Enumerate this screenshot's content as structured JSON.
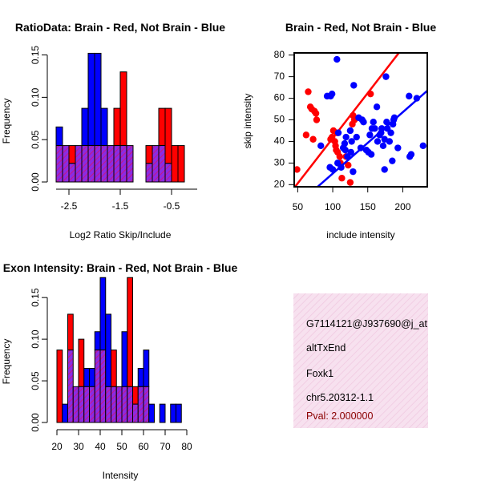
{
  "colors": {
    "red": "#ff0000",
    "blue": "#0000ff",
    "overlap_fill": "#8b2be2",
    "overlap_hatch": "#c71585",
    "line_red": "#ff0000",
    "line_blue": "#0000ff",
    "panel_fill": "#f7e1ef",
    "pval": "#8b0000"
  },
  "chart_data": [
    {
      "id": "ratio",
      "type": "bar",
      "title": "RatioData: Brain - Red, Not Brain - Blue",
      "xlabel": "Log2 Ratio Skip/Include",
      "ylabel": "Frequency",
      "xlim": [
        -2.75,
        0.0
      ],
      "ylim": [
        0,
        0.16
      ],
      "xticks": [
        -2.5,
        -1.5,
        -0.5
      ],
      "xtick_labels": [
        "-2.5",
        "-1.5",
        "-0.5"
      ],
      "yticks": [
        0.0,
        0.05,
        0.1,
        0.15
      ],
      "ytick_labels": [
        "0.00",
        "0.05",
        "0.10",
        "0.15"
      ],
      "bin_edges": [
        -2.75,
        -2.625,
        -2.5,
        -2.375,
        -2.25,
        -2.125,
        -2.0,
        -1.875,
        -1.75,
        -1.625,
        -1.5,
        -1.375,
        -1.25,
        -1.125,
        -1.0,
        -0.875,
        -0.75,
        -0.625,
        -0.5,
        -0.375,
        -0.25
      ],
      "series": [
        {
          "name": "Brain",
          "color": "red",
          "values": [
            0.043,
            0.043,
            0.043,
            0.043,
            0.043,
            0.043,
            0.043,
            0.043,
            0.043,
            0.087,
            0.13,
            0.043,
            0,
            0,
            0.043,
            0.043,
            0.087,
            0.087,
            0.043,
            0.043
          ]
        },
        {
          "name": "Not Brain",
          "color": "blue",
          "values": [
            0.065,
            0.043,
            0.022,
            0.043,
            0.087,
            0.152,
            0.152,
            0.087,
            0.043,
            0.043,
            0.043,
            0.043,
            0,
            0,
            0.022,
            0.043,
            0.043,
            0.022,
            0,
            0
          ]
        }
      ]
    },
    {
      "id": "scatter",
      "type": "scatter",
      "title": "Brain - Red, Not Brain - Blue",
      "xlabel": "include intensity",
      "ylabel": "skip intensity",
      "xlim": [
        45,
        235
      ],
      "ylim": [
        19,
        81
      ],
      "xticks": [
        50,
        100,
        150,
        200
      ],
      "xtick_labels": [
        "50",
        "100",
        "150",
        "200"
      ],
      "yticks": [
        20,
        30,
        40,
        50,
        60,
        70,
        80
      ],
      "ytick_labels": [
        "20",
        "30",
        "40",
        "50",
        "60",
        "70",
        "80"
      ],
      "series": [
        {
          "name": "Brain",
          "color": "red",
          "points": [
            [
              49,
              27
            ],
            [
              62,
              43
            ],
            [
              65,
              63
            ],
            [
              68,
              56
            ],
            [
              70,
              55
            ],
            [
              72,
              41
            ],
            [
              74,
              54
            ],
            [
              76,
              53
            ],
            [
              77,
              50
            ],
            [
              97,
              41
            ],
            [
              99,
              42
            ],
            [
              101,
              45
            ],
            [
              103,
              40
            ],
            [
              104,
              38
            ],
            [
              105,
              36
            ],
            [
              106,
              44
            ],
            [
              107,
              35
            ],
            [
              110,
              33
            ],
            [
              111,
              30
            ],
            [
              113,
              23
            ],
            [
              119,
              33
            ],
            [
              122,
              29
            ],
            [
              125,
              21
            ],
            [
              128,
              48
            ],
            [
              129,
              52
            ],
            [
              131,
              50
            ],
            [
              154,
              62
            ]
          ],
          "fit": {
            "x": [
              45,
              235
            ],
            "y": [
              18.5,
              98.0
            ]
          }
        },
        {
          "name": "Not Brain",
          "color": "blue",
          "points": [
            [
              83,
              38
            ],
            [
              92,
              61
            ],
            [
              96,
              28
            ],
            [
              97,
              61
            ],
            [
              99,
              62
            ],
            [
              100,
              27
            ],
            [
              106,
              78
            ],
            [
              107,
              30
            ],
            [
              108,
              44
            ],
            [
              112,
              28
            ],
            [
              115,
              37
            ],
            [
              117,
              39
            ],
            [
              118,
              36
            ],
            [
              119,
              42
            ],
            [
              121,
              33
            ],
            [
              125,
              45
            ],
            [
              126,
              35
            ],
            [
              127,
              40
            ],
            [
              129,
              26
            ],
            [
              130,
              66
            ],
            [
              134,
              42
            ],
            [
              137,
              51
            ],
            [
              140,
              37
            ],
            [
              142,
              50
            ],
            [
              144,
              49
            ],
            [
              148,
              36
            ],
            [
              151,
              35
            ],
            [
              153,
              43
            ],
            [
              155,
              34
            ],
            [
              156,
              46
            ],
            [
              158,
              49
            ],
            [
              160,
              46
            ],
            [
              163,
              56
            ],
            [
              164,
              40
            ],
            [
              167,
              43
            ],
            [
              169,
              44
            ],
            [
              170,
              46
            ],
            [
              172,
              38
            ],
            [
              174,
              41
            ],
            [
              174,
              27
            ],
            [
              176,
              70
            ],
            [
              177,
              49
            ],
            [
              178,
              46
            ],
            [
              181,
              40
            ],
            [
              183,
              44
            ],
            [
              185,
              31
            ],
            [
              186,
              48
            ],
            [
              187,
              50
            ],
            [
              188,
              51
            ],
            [
              193,
              37
            ],
            [
              209,
              61
            ],
            [
              210,
              33
            ],
            [
              212,
              34
            ],
            [
              220,
              60
            ],
            [
              229,
              38
            ]
          ],
          "fit": {
            "x": [
              45,
              235
            ],
            "y": [
              9.5,
              63.5
            ]
          }
        }
      ]
    },
    {
      "id": "intensity",
      "type": "bar",
      "title": "Exon Intensity: Brain - Red, Not Brain - Blue",
      "xlabel": "Intensity",
      "ylabel": "Frequency",
      "xlim": [
        20,
        80
      ],
      "ylim": [
        0,
        0.18
      ],
      "xticks": [
        20,
        30,
        40,
        50,
        60,
        70,
        80
      ],
      "xtick_labels": [
        "20",
        "30",
        "40",
        "50",
        "60",
        "70",
        "80"
      ],
      "yticks": [
        0.0,
        0.05,
        0.1,
        0.15
      ],
      "ytick_labels": [
        "0.00",
        "0.05",
        "0.10",
        "0.15"
      ],
      "bin_edges": [
        20,
        22.5,
        25,
        27.5,
        30,
        32.5,
        35,
        37.5,
        40,
        42.5,
        45,
        47.5,
        50,
        52.5,
        55,
        57.5,
        60,
        62.5,
        65,
        67.5,
        70,
        72.5,
        75,
        77.5
      ],
      "series": [
        {
          "name": "Brain",
          "color": "red",
          "values": [
            0.087,
            0,
            0.13,
            0.043,
            0.1,
            0.043,
            0.043,
            0.087,
            0.087,
            0.043,
            0.087,
            0.043,
            0.043,
            0.174,
            0.043,
            0.043,
            0.043,
            0,
            0,
            0,
            0,
            0,
            0
          ]
        },
        {
          "name": "Not Brain",
          "color": "blue",
          "values": [
            0,
            0.022,
            0.087,
            0.043,
            0.043,
            0.065,
            0.065,
            0.109,
            0.174,
            0.13,
            0.043,
            0.043,
            0.109,
            0.043,
            0.022,
            0.065,
            0.087,
            0.022,
            0,
            0.022,
            0,
            0.022,
            0.022
          ]
        }
      ]
    }
  ],
  "info_panel": {
    "lines": [
      "G7114121@J937690@j_at",
      "altTxEnd",
      "Foxk1",
      "chr5.20312-1.1"
    ],
    "pval": "Pval: 2.000000"
  }
}
